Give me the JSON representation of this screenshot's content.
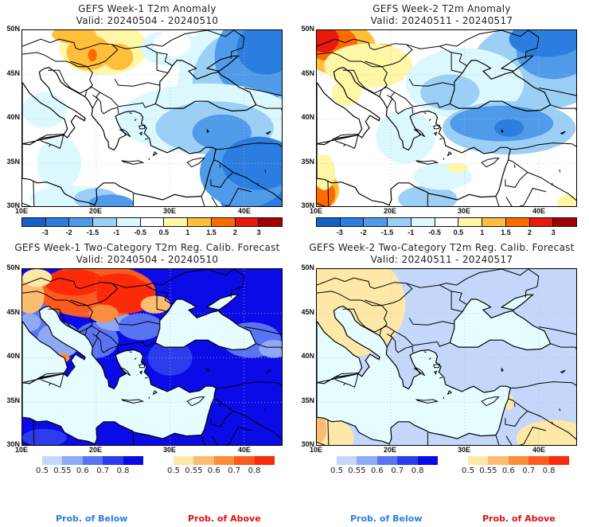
{
  "panels": [
    {
      "id": "w1-anom",
      "title": "GEFS Week-1 T2m Anomaly",
      "valid": "Valid: 20240504 - 20240510",
      "type": "anomaly",
      "pattern": "week1-anom"
    },
    {
      "id": "w2-anom",
      "title": "GEFS Week-2 T2m Anomaly",
      "valid": "Valid: 20240511 - 20240517",
      "type": "anomaly",
      "pattern": "week2-anom"
    },
    {
      "id": "w1-prob",
      "title": "GEFS Week-1 Two-Category T2m Reg. Calib. Forecast",
      "valid": "Valid: 20240504 - 20240510",
      "type": "probability",
      "pattern": "week1-prob"
    },
    {
      "id": "w2-prob",
      "title": "GEFS Week-2 Two-Category T2m Reg. Calib. Forecast",
      "valid": "Valid: 20240511 - 20240517",
      "type": "probability",
      "pattern": "week2-prob"
    }
  ],
  "axes": {
    "lat_labels": [
      "50N",
      "45N",
      "40N",
      "35N",
      "30N"
    ],
    "lon_labels": [
      "10E",
      "20E",
      "30E",
      "40E"
    ]
  },
  "anomaly_colorbar": {
    "colors": [
      "#1560c8",
      "#2b7de0",
      "#4f9be9",
      "#9ccff5",
      "#dcf8ff",
      "#ffffff",
      "#fff6a6",
      "#ffbf3a",
      "#ff6a00",
      "#e8190f",
      "#a50000"
    ],
    "labels": [
      "-3",
      "-2",
      "-1.5",
      "-1",
      "-0.5",
      "0.5",
      "1",
      "1.5",
      "2",
      "3"
    ]
  },
  "below_colorbar": {
    "colors": [
      "#c4d7fa",
      "#8fa9f6",
      "#5a73f2",
      "#2c3cec",
      "#0b0be8"
    ],
    "labels": [
      "0.5",
      "0.55",
      "0.6",
      "0.7",
      "0.8"
    ]
  },
  "above_colorbar": {
    "colors": [
      "#fde8a8",
      "#fdbd70",
      "#fd8c3c",
      "#fd5a1e",
      "#fd2a0a"
    ],
    "labels": [
      "0.5",
      "0.55",
      "0.6",
      "0.7",
      "0.8"
    ]
  },
  "legend": {
    "below": "Prob. of Below",
    "above": "Prob. of Above",
    "below_color": "#2b7de0",
    "above_color": "#e01010"
  },
  "sea_color": "#e6fdff"
}
